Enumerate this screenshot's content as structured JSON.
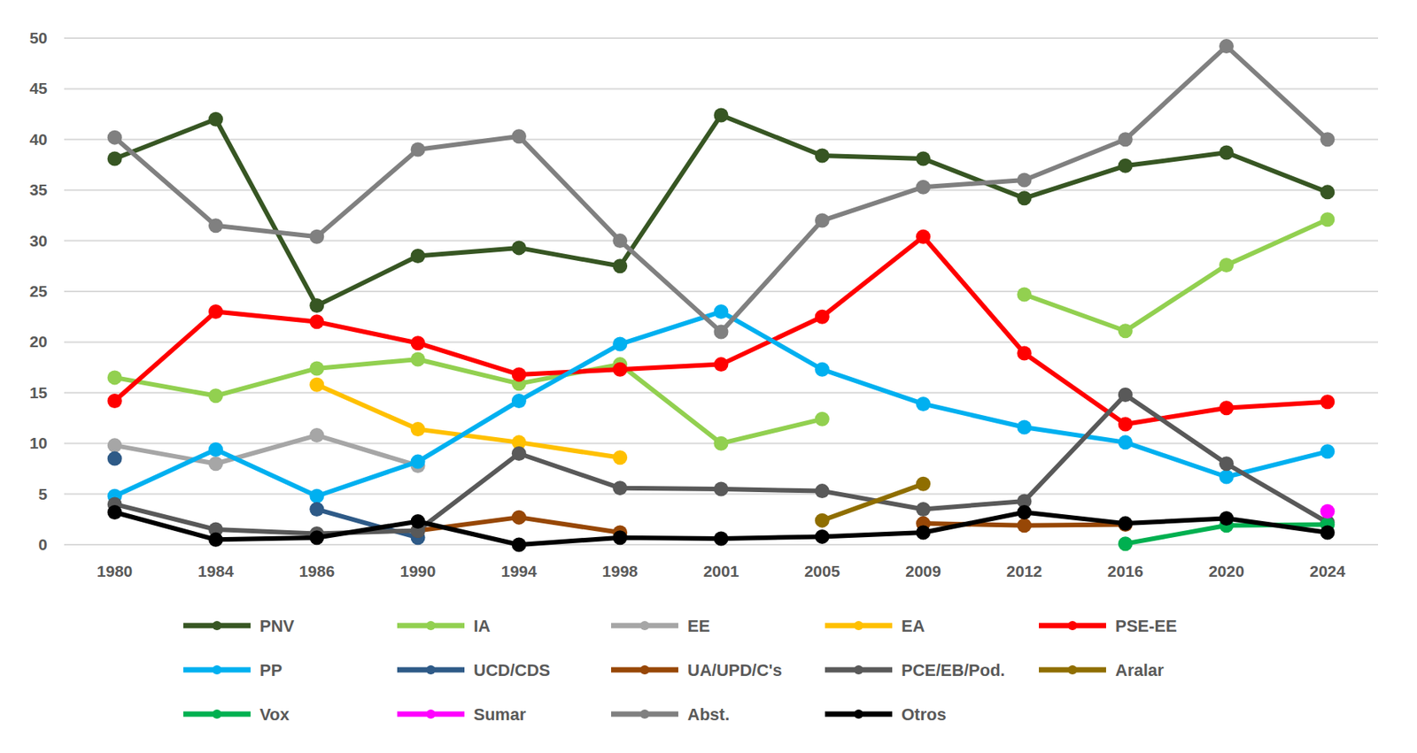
{
  "chart_data": {
    "type": "line",
    "categories": [
      "1980",
      "1984",
      "1986",
      "1990",
      "1994",
      "1998",
      "2001",
      "2005",
      "2009",
      "2012",
      "2016",
      "2020",
      "2024"
    ],
    "ylim": [
      0,
      50
    ],
    "yticks": [
      0,
      5,
      10,
      15,
      20,
      25,
      30,
      35,
      40,
      45,
      50
    ],
    "grid": true,
    "legend": "bottom",
    "marker": "circle",
    "series": [
      {
        "name": "PNV",
        "color": "#375623",
        "values": [
          38.1,
          42.0,
          23.6,
          28.5,
          29.3,
          27.5,
          42.4,
          38.4,
          38.1,
          34.2,
          37.4,
          38.7,
          34.8
        ]
      },
      {
        "name": "IA",
        "color": "#92d050",
        "values": [
          16.5,
          14.7,
          17.4,
          18.3,
          15.9,
          17.8,
          10.0,
          12.4,
          null,
          24.7,
          21.1,
          27.6,
          32.1
        ]
      },
      {
        "name": "EE",
        "color": "#a6a6a6",
        "values": [
          9.8,
          8.0,
          10.8,
          7.8,
          null,
          null,
          null,
          null,
          null,
          null,
          null,
          null,
          null
        ]
      },
      {
        "name": "EA",
        "color": "#ffc000",
        "values": [
          null,
          null,
          15.8,
          11.4,
          10.1,
          8.6,
          null,
          null,
          null,
          null,
          null,
          null,
          null
        ]
      },
      {
        "name": "PSE-EE",
        "color": "#ff0000",
        "values": [
          14.2,
          23.0,
          22.0,
          19.9,
          16.8,
          17.3,
          17.8,
          22.5,
          30.4,
          18.9,
          11.9,
          13.5,
          14.1
        ]
      },
      {
        "name": "PP",
        "color": "#00b0f0",
        "values": [
          4.8,
          9.4,
          4.8,
          8.2,
          14.2,
          19.8,
          23.0,
          17.3,
          13.9,
          11.6,
          10.1,
          6.7,
          9.2
        ]
      },
      {
        "name": "UCD/CDS",
        "color": "#2e5a87",
        "values": [
          8.5,
          null,
          3.5,
          0.7,
          null,
          null,
          null,
          null,
          null,
          null,
          null,
          null,
          null
        ]
      },
      {
        "name": "UA/UPD/C's",
        "color": "#974706",
        "values": [
          null,
          null,
          null,
          1.4,
          2.7,
          1.2,
          null,
          null,
          2.1,
          1.9,
          2.0,
          null,
          null
        ]
      },
      {
        "name": "PCE/EB/Pod.",
        "color": "#595959",
        "values": [
          4.0,
          1.5,
          1.1,
          1.4,
          9.0,
          5.6,
          5.5,
          5.3,
          3.5,
          4.3,
          14.8,
          8.0,
          2.2
        ]
      },
      {
        "name": "Aralar",
        "color": "#8f6e00",
        "values": [
          null,
          null,
          null,
          null,
          null,
          null,
          null,
          2.4,
          6.0,
          null,
          null,
          null,
          null
        ]
      },
      {
        "name": "Vox",
        "color": "#00b050",
        "values": [
          null,
          null,
          null,
          null,
          null,
          null,
          null,
          null,
          null,
          null,
          0.1,
          1.9,
          2.0
        ]
      },
      {
        "name": "Sumar",
        "color": "#ff00ff",
        "values": [
          null,
          null,
          null,
          null,
          null,
          null,
          null,
          null,
          null,
          null,
          null,
          null,
          3.3
        ]
      },
      {
        "name": "Abst.",
        "color": "#808080",
        "values": [
          40.2,
          31.5,
          30.4,
          39.0,
          40.3,
          30.0,
          21.0,
          32.0,
          35.3,
          36.0,
          40.0,
          49.2,
          40.0
        ]
      },
      {
        "name": "Otros",
        "color": "#000000",
        "values": [
          3.2,
          0.5,
          0.7,
          2.3,
          0.0,
          0.7,
          0.6,
          0.8,
          1.2,
          3.2,
          2.1,
          2.6,
          1.2
        ]
      }
    ]
  }
}
